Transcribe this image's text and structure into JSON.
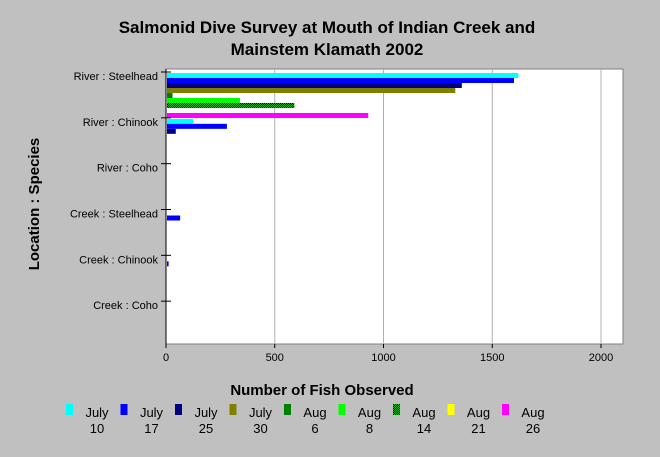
{
  "chart_data": {
    "type": "bar",
    "orientation": "horizontal",
    "title": "Salmonid Dive Survey at Mouth of Indian Creek and Mainstem Klamath 2002",
    "title_lines": [
      "Salmonid Dive Survey at Mouth of Indian Creek and",
      "Mainstem Klamath 2002"
    ],
    "xlabel": "Number of Fish Observed",
    "ylabel": "Location : Species",
    "xlim": [
      0,
      2000
    ],
    "xticks": [
      0,
      500,
      1000,
      1500,
      2000
    ],
    "grid": "vertical",
    "legend_position": "bottom",
    "categories": [
      "River : Steelhead",
      "River : Chinook",
      "River : Coho",
      "Creek : Steelhead",
      "Creek : Chinook",
      "Creek : Coho"
    ],
    "series": [
      {
        "name": "July 10",
        "label_lines": [
          "July",
          "10"
        ],
        "color": "#00ffff",
        "values": [
          1620,
          125,
          0,
          0,
          0,
          0
        ]
      },
      {
        "name": "July 17",
        "label_lines": [
          "July",
          "17"
        ],
        "color": "#0000ff",
        "values": [
          1600,
          280,
          0,
          65,
          12,
          0
        ]
      },
      {
        "name": "July 25",
        "label_lines": [
          "July",
          "25"
        ],
        "color": "#000080",
        "values": [
          1360,
          45,
          0,
          0,
          0,
          0
        ]
      },
      {
        "name": "July 30",
        "label_lines": [
          "July",
          "30"
        ],
        "color": "#808000",
        "values": [
          1330,
          0,
          0,
          0,
          0,
          0
        ]
      },
      {
        "name": "Aug 6",
        "label_lines": [
          "Aug",
          "6"
        ],
        "color": "#008000",
        "values": [
          30,
          0,
          0,
          0,
          0,
          0
        ]
      },
      {
        "name": "Aug 8",
        "label_lines": [
          "Aug",
          "8"
        ],
        "color": "#00ff00",
        "values": [
          340,
          0,
          0,
          0,
          0,
          0
        ]
      },
      {
        "name": "Aug 14",
        "label_lines": [
          "Aug",
          "14"
        ],
        "color": "#008000",
        "pattern": "checker",
        "values": [
          590,
          0,
          0,
          0,
          0,
          0
        ]
      },
      {
        "name": "Aug 21",
        "label_lines": [
          "Aug",
          "21"
        ],
        "color": "#ffff00",
        "values": [
          0,
          0,
          0,
          0,
          0,
          0
        ]
      },
      {
        "name": "Aug 26",
        "label_lines": [
          "Aug",
          "26"
        ],
        "color": "#ff00ff",
        "values": [
          930,
          0,
          0,
          0,
          0,
          0
        ]
      }
    ]
  }
}
